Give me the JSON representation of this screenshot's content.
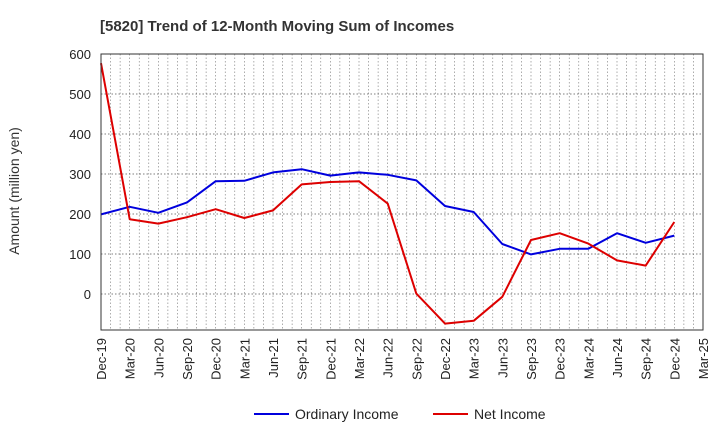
{
  "chart_data": {
    "type": "line",
    "title": "[5820]  Trend of 12-Month Moving Sum of Incomes",
    "ylabel": "Amount (million yen)",
    "xlabel": "",
    "categories": [
      "Dec-19",
      "Mar-20",
      "Jun-20",
      "Sep-20",
      "Dec-20",
      "Mar-21",
      "Jun-21",
      "Sep-21",
      "Dec-21",
      "Mar-22",
      "Jun-22",
      "Sep-22",
      "Dec-22",
      "Mar-23",
      "Jun-23",
      "Sep-23",
      "Dec-23",
      "Mar-24",
      "Jun-24",
      "Sep-24",
      "Dec-24",
      "Mar-25"
    ],
    "ylim": [
      -90,
      600
    ],
    "yticks": [
      0,
      100,
      200,
      300,
      400,
      500,
      600
    ],
    "grid": true,
    "legend_position": "bottom",
    "series": [
      {
        "name": "Ordinary Income",
        "color": "#0000dd",
        "values": [
          199,
          218,
          203,
          229,
          282,
          283,
          304,
          312,
          296,
          304,
          298,
          284,
          220,
          205,
          125,
          99,
          113,
          113,
          152,
          128,
          146,
          null
        ]
      },
      {
        "name": "Net Income",
        "color": "#dd0000",
        "values": [
          577,
          187,
          176,
          192,
          212,
          190,
          209,
          274,
          280,
          282,
          226,
          1,
          -74,
          -67,
          -7,
          135,
          152,
          126,
          84,
          71,
          180,
          null
        ]
      }
    ]
  }
}
